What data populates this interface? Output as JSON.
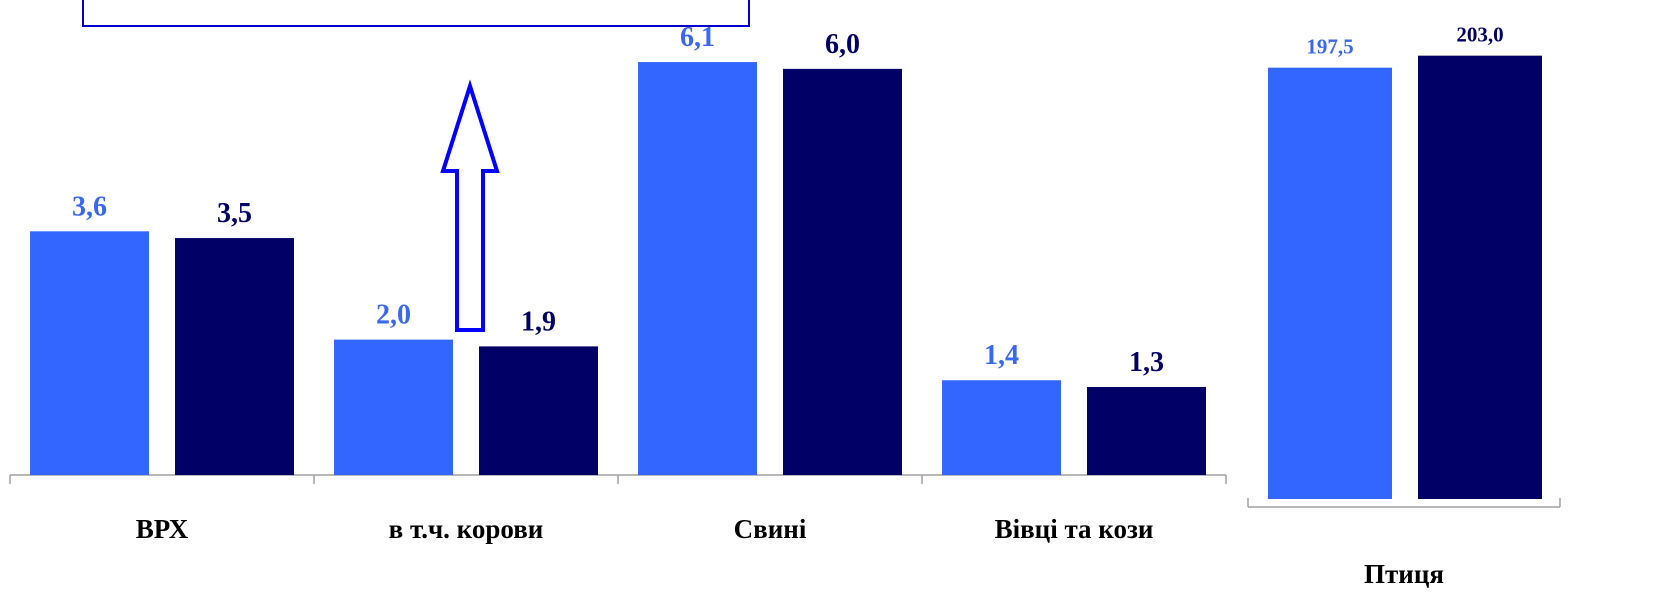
{
  "colors": {
    "series_1": "#3366ff",
    "series_2": "#000066",
    "label_1": "#3a68f4",
    "label_2": "#000066",
    "box_border": "#0000cc",
    "arrow": "#0000ff",
    "axis": "#a0a0a0"
  },
  "chart_data": [
    {
      "type": "bar",
      "categories": [
        "ВРХ",
        "в т.ч. корови",
        "Свині",
        "Вівці та кози"
      ],
      "series": [
        {
          "values": [
            3.6,
            2.0,
            6.1,
            1.4
          ],
          "labels": [
            "3,6",
            "2,0",
            "6,1",
            "1,4"
          ]
        },
        {
          "values": [
            3.5,
            1.9,
            6.0,
            1.3
          ],
          "labels": [
            "3,5",
            "1,9",
            "6,0",
            "1,3"
          ]
        }
      ],
      "ylim": [
        0,
        6.5
      ],
      "grid": false,
      "title": "",
      "xlabel": "",
      "ylabel": ""
    },
    {
      "type": "bar",
      "categories": [
        "Птиця"
      ],
      "series": [
        {
          "values": [
            197.5
          ],
          "labels": [
            "197,5"
          ]
        },
        {
          "values": [
            203.0
          ],
          "labels": [
            "203,0"
          ]
        }
      ],
      "ylim": [
        0,
        212
      ],
      "grid": false,
      "title": "",
      "xlabel": "",
      "ylabel": ""
    }
  ],
  "annotations": {
    "box_text": "",
    "arrow_direction": "up"
  }
}
